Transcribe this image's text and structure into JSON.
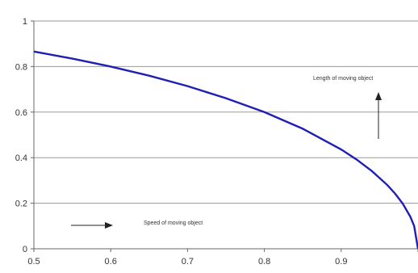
{
  "chart_data": {
    "type": "line",
    "title": "",
    "xlabel": "",
    "ylabel": "",
    "xlim": [
      0.5,
      1.0
    ],
    "ylim": [
      0,
      1
    ],
    "x_ticks": [
      "0.5",
      "0.6",
      "0.7",
      "0.8",
      "0.9",
      ""
    ],
    "y_ticks": [
      "0",
      "0.2",
      "0.4",
      "0.6",
      "0.8",
      "1"
    ],
    "grid": "horizontal",
    "series": [
      {
        "color": "#1f1fb4",
        "x": [
          0.5,
          0.55,
          0.6,
          0.65,
          0.7,
          0.75,
          0.8,
          0.85,
          0.9,
          0.92,
          0.94,
          0.96,
          0.97,
          0.98,
          0.99,
          0.995,
          1.0
        ],
        "y": [
          0.866,
          0.835,
          0.8,
          0.76,
          0.714,
          0.661,
          0.6,
          0.527,
          0.436,
          0.392,
          0.341,
          0.28,
          0.243,
          0.199,
          0.141,
          0.1,
          0.0
        ]
      }
    ],
    "annotations": [
      {
        "text": "Length of moving object",
        "arrow": "up"
      },
      {
        "text": "Speed of moving object",
        "arrow": "right"
      }
    ]
  }
}
